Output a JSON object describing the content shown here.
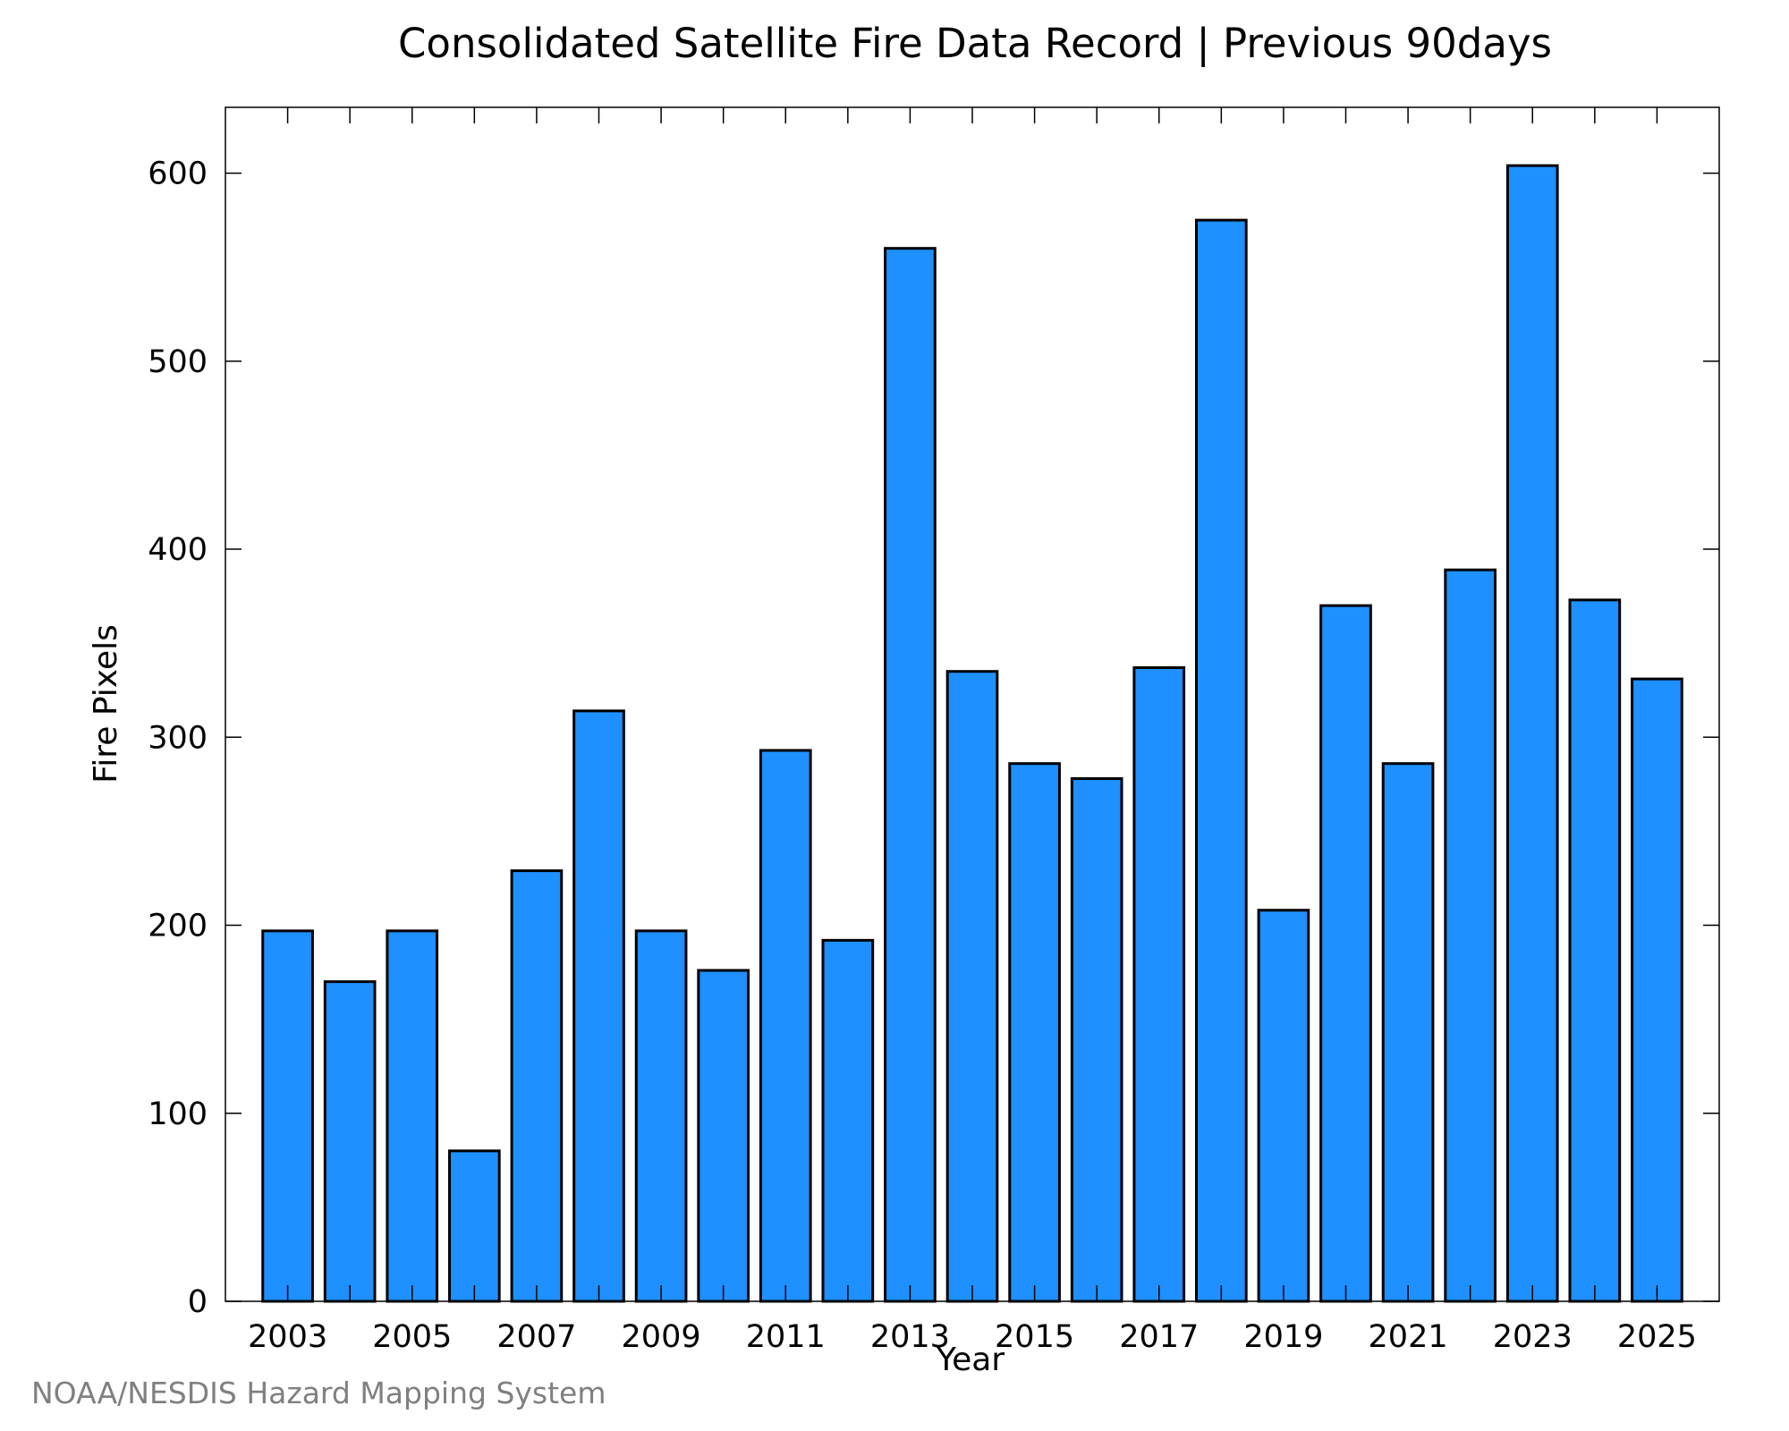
{
  "chart_data": {
    "type": "bar",
    "title": "Consolidated Satellite Fire Data Record | Previous 90days",
    "xlabel": "Year",
    "ylabel": "Fire Pixels",
    "categories": [
      "2003",
      "2004",
      "2005",
      "2006",
      "2007",
      "2008",
      "2009",
      "2010",
      "2011",
      "2012",
      "2013",
      "2014",
      "2015",
      "2016",
      "2017",
      "2018",
      "2019",
      "2020",
      "2021",
      "2022",
      "2023",
      "2024",
      "2025"
    ],
    "values": [
      197,
      170,
      197,
      80,
      229,
      314,
      197,
      176,
      293,
      192,
      560,
      335,
      286,
      278,
      337,
      575,
      208,
      370,
      286,
      389,
      604,
      373,
      331
    ],
    "x_tick_labels": [
      "2003",
      "2005",
      "2007",
      "2009",
      "2011",
      "2013",
      "2015",
      "2017",
      "2019",
      "2021",
      "2023",
      "2025"
    ],
    "y_ticks": [
      0,
      100,
      200,
      300,
      400,
      500,
      600
    ],
    "ylim": [
      0,
      635
    ],
    "grid": false,
    "legend": "none",
    "bar_color": "#1e90ff",
    "edge_color": "#000000"
  },
  "credit": "NOAA/NESDIS Hazard Mapping System"
}
